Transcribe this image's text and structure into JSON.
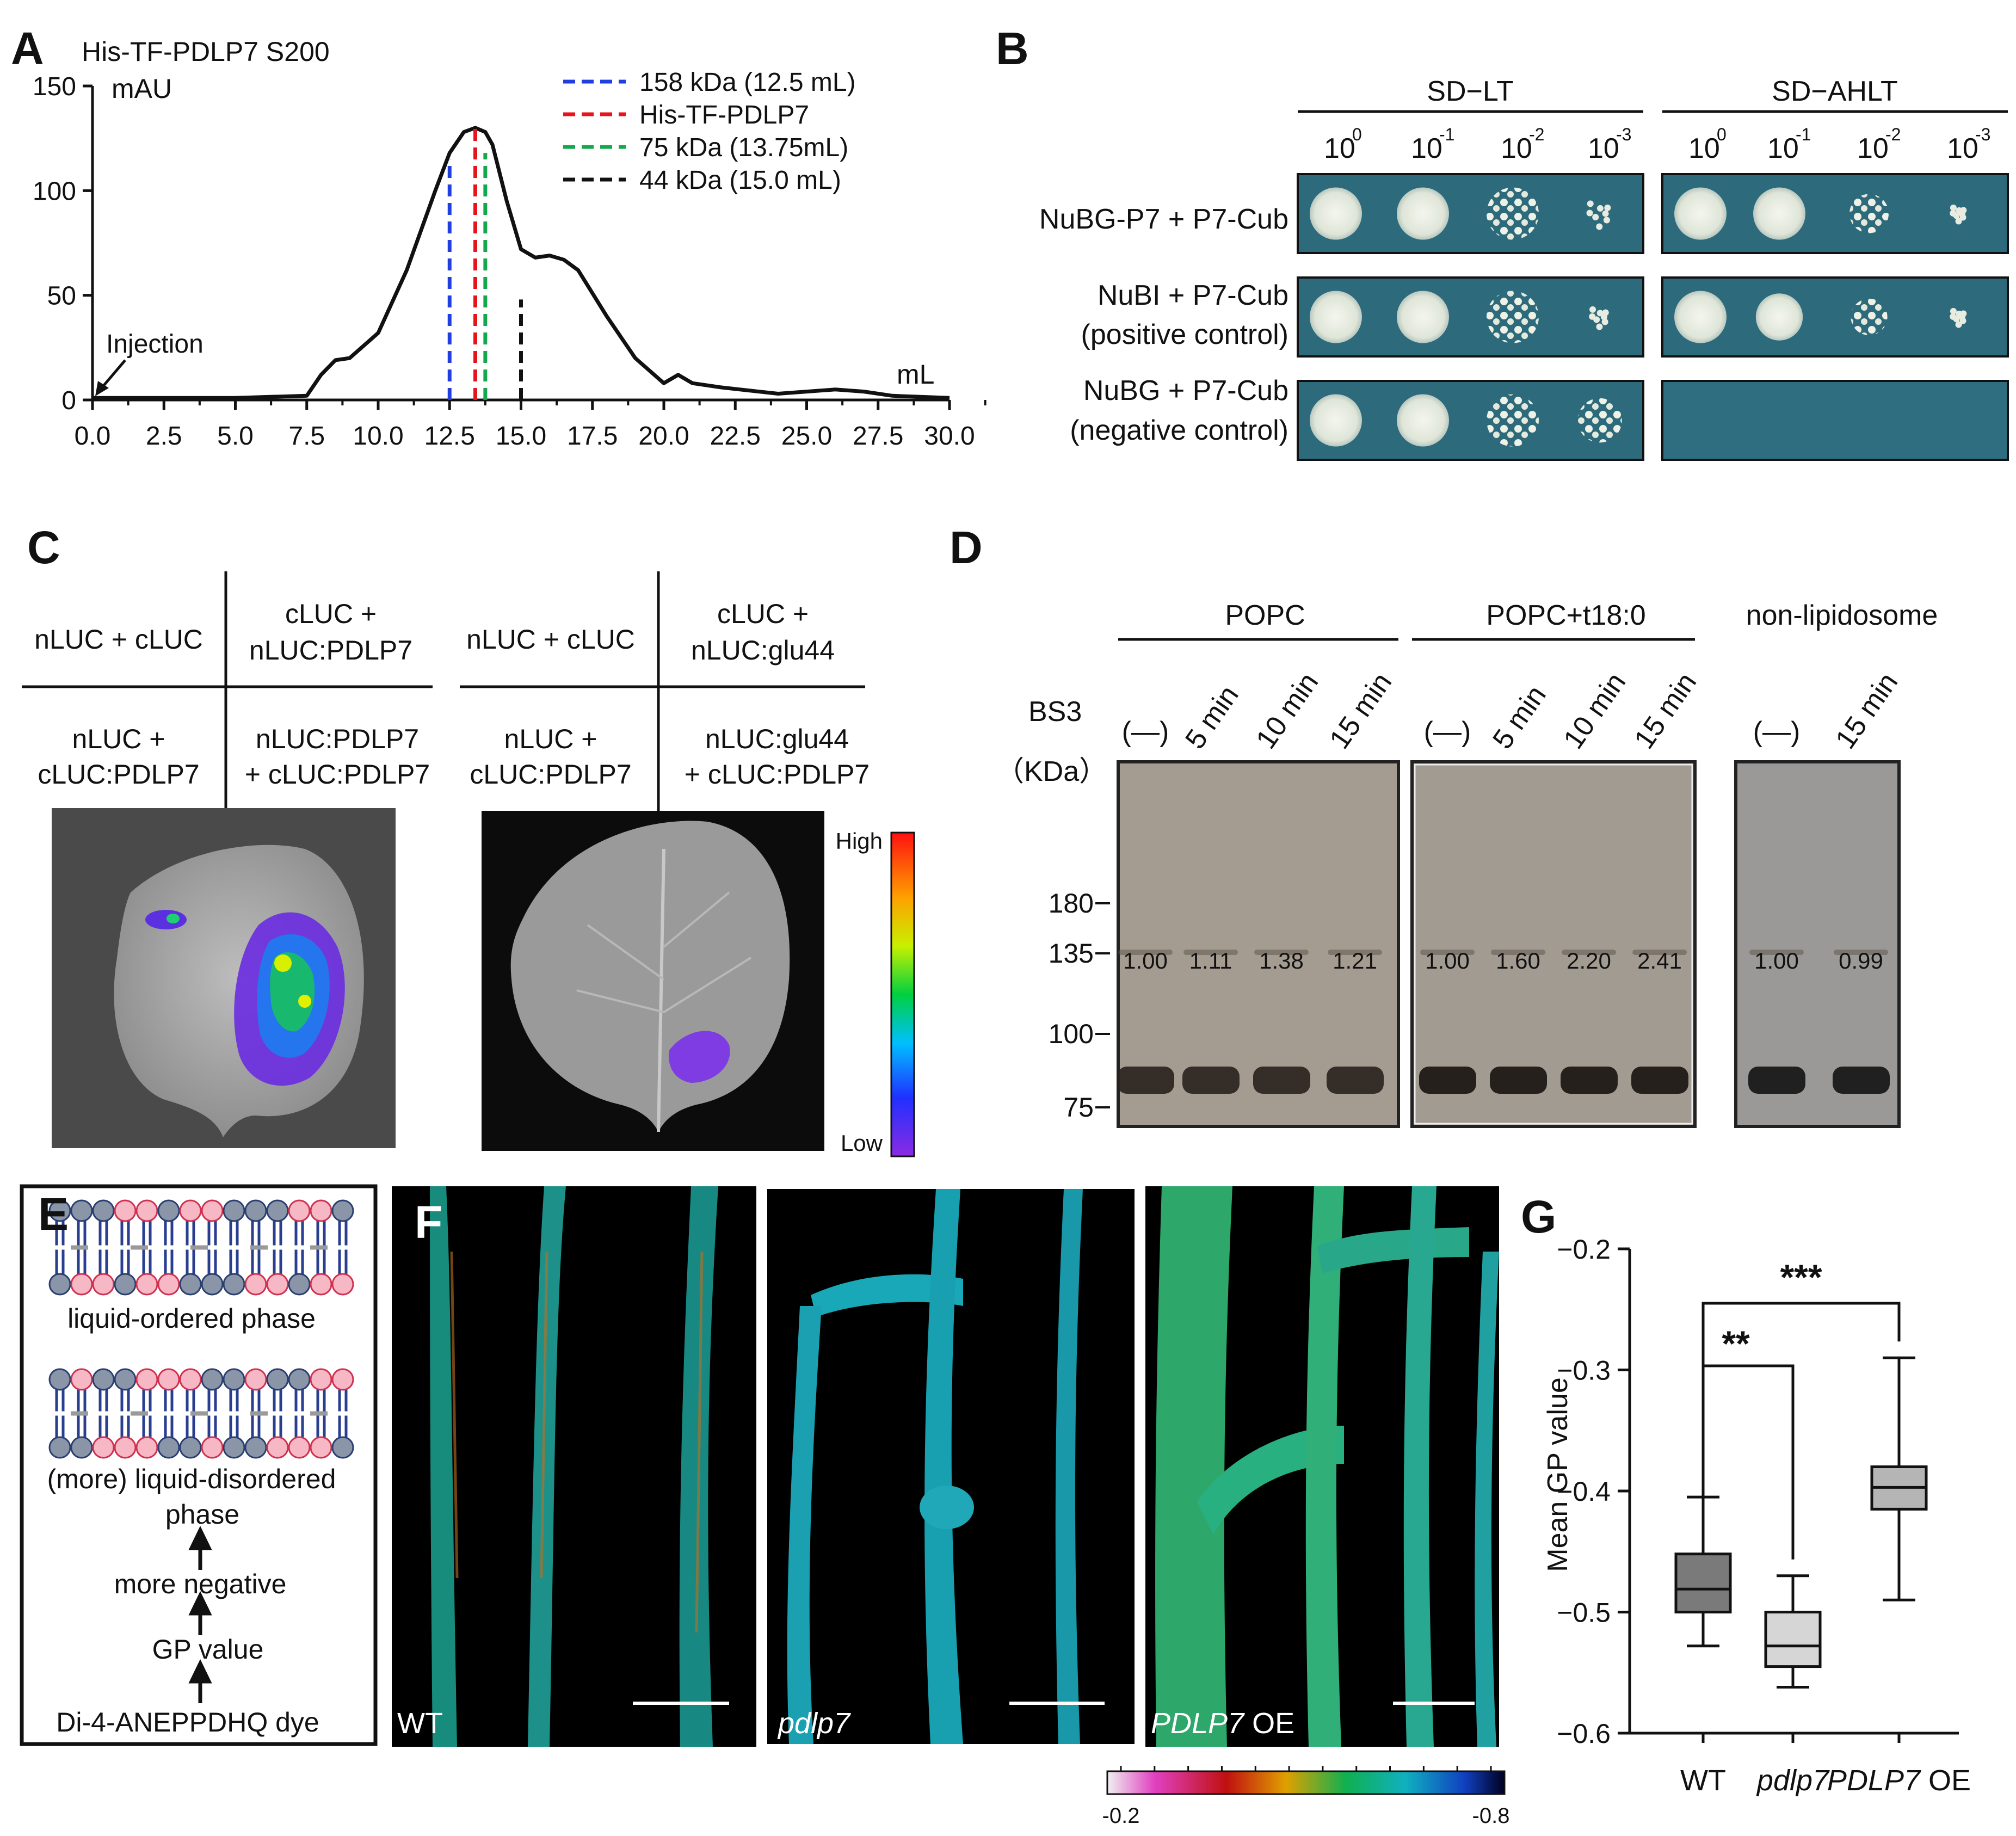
{
  "panels": {
    "A": {
      "label": "A",
      "title": "His-TF-PDLP7 S200",
      "y_unit": "mAU",
      "x_unit": "mL",
      "injection_label": "Injection",
      "legend": [
        {
          "text": "158 kDa (12.5 mL)",
          "color": "#1f3fe0"
        },
        {
          "text": "His-TF-PDLP7",
          "color": "#e8141c"
        },
        {
          "text": "75 kDa (13.75mL)",
          "color": "#13a84e"
        },
        {
          "text": "44 kDa (15.0 mL)",
          "color": "#111111"
        }
      ],
      "x_ticks": [
        "0.0",
        "2.5",
        "5.0",
        "7.5",
        "10.0",
        "12.5",
        "15.0",
        "17.5",
        "20.0",
        "22.5",
        "25.0",
        "27.5",
        "30.0"
      ],
      "y_ticks": [
        "0",
        "50",
        "100",
        "150"
      ]
    },
    "B": {
      "label": "B",
      "groups": [
        "SD−LT",
        "SD−AHLT"
      ],
      "dilutions": [
        "10",
        "10",
        "10",
        "10"
      ],
      "dilution_exps": [
        "0",
        "-1",
        "-2",
        "-3"
      ],
      "rows": [
        {
          "line1": "NuBG-P7 + P7-Cub",
          "line2": ""
        },
        {
          "line1": "NuBI + P7-Cub",
          "line2": "(positive control)"
        },
        {
          "line1": "NuBG + P7-Cub",
          "line2": "(negative control)"
        }
      ]
    },
    "C": {
      "label": "C",
      "left_grid": {
        "tl": "nLUC + cLUC",
        "tr1": "cLUC +",
        "tr2": "nLUC:PDLP7",
        "bl1": "nLUC +",
        "bl2": "cLUC:PDLP7",
        "br1": "nLUC:PDLP7",
        "br2": "+ cLUC:PDLP7"
      },
      "right_grid": {
        "tl": "nLUC + cLUC",
        "tr1": "cLUC +",
        "tr2": "nLUC:glu44",
        "bl1": "nLUC +",
        "bl2": "cLUC:PDLP7",
        "br1": "nLUC:glu44",
        "br2": "+ cLUC:PDLP7"
      },
      "scale_high": "High",
      "scale_low": "Low"
    },
    "D": {
      "label": "D",
      "groups": [
        "POPC",
        "POPC+t18:0",
        "non-lipidosome"
      ],
      "bs3_label": "BS3",
      "kda_label": "（KDa）",
      "lanes_g1": [
        "(—)",
        "5 min",
        "10 min",
        "15 min"
      ],
      "lanes_g2": [
        "(—)",
        "5 min",
        "10 min",
        "15 min"
      ],
      "lanes_g3": [
        "(—)",
        "15 min"
      ],
      "markers": [
        "180",
        "135",
        "100",
        "75"
      ],
      "ratios_g1": [
        "1.00",
        "1.11",
        "1.38",
        "1.21"
      ],
      "ratios_g2": [
        "1.00",
        "1.60",
        "2.20",
        "2.41"
      ],
      "ratios_g3": [
        "1.00",
        "0.99"
      ]
    },
    "E": {
      "label": "E",
      "ordered": "liquid-ordered phase",
      "disordered1": "(more) liquid-disordered",
      "disordered2": "phase",
      "step1": "more negative",
      "step2": "GP value",
      "step3": "Di-4-ANEPPDHQ dye"
    },
    "F": {
      "label": "F",
      "images": [
        "WT",
        "pdlp7",
        "PDLP7"
      ],
      "oe_suffix": " OE",
      "scale_min": "-0.2",
      "scale_max": "-0.8"
    },
    "G": {
      "label": "G",
      "sig_wt_pdlp7": "**",
      "sig_wt_oe": "***"
    }
  },
  "chart_data": [
    {
      "type": "line",
      "title": "His-TF-PDLP7 S200",
      "xlabel": "mL",
      "ylabel": "mAU",
      "xlim": [
        0,
        30
      ],
      "ylim": [
        0,
        150
      ],
      "series": [
        {
          "x": [
            0,
            5,
            7.5,
            8,
            8.5,
            9,
            10,
            11,
            12,
            12.5,
            13,
            13.4,
            13.75,
            14,
            14.5,
            15,
            15.5,
            16,
            16.5,
            17,
            18,
            19,
            20,
            20.5,
            21,
            22,
            24,
            25,
            26,
            27,
            28,
            30
          ],
          "values": [
            1,
            1,
            2,
            12,
            19,
            20,
            32,
            62,
            100,
            118,
            128,
            130,
            128,
            122,
            95,
            72,
            68,
            69,
            67,
            62,
            40,
            20,
            8,
            12,
            8,
            6,
            3,
            4,
            5,
            4,
            2,
            1
          ]
        }
      ],
      "markers": [
        {
          "name": "158 kDa (12.5 mL)",
          "x": 12.5
        },
        {
          "name": "His-TF-PDLP7",
          "x": 13.4
        },
        {
          "name": "75 kDa (13.75mL)",
          "x": 13.75
        },
        {
          "name": "44 kDa (15.0 mL)",
          "x": 15.0
        }
      ]
    },
    {
      "type": "box",
      "xlabel": "",
      "ylabel": "Mean GP value",
      "ylim": [
        -0.6,
        -0.2
      ],
      "categories": [
        "WT",
        "pdlp7",
        "PDLP7 OE"
      ],
      "boxes": [
        {
          "min": -0.528,
          "q1": -0.5,
          "median": -0.481,
          "q3": -0.452,
          "max": -0.405,
          "color": "#7a7a7a"
        },
        {
          "min": -0.562,
          "q1": -0.545,
          "median": -0.528,
          "q3": -0.5,
          "max": -0.47,
          "color": "#d6d6d6"
        },
        {
          "min": -0.49,
          "q1": -0.415,
          "median": -0.397,
          "q3": -0.38,
          "max": -0.29,
          "color": "#b5b5b5"
        }
      ],
      "y_ticks": [
        -0.2,
        -0.3,
        -0.4,
        -0.5,
        -0.6
      ],
      "comparisons": [
        {
          "from": "WT",
          "to": "pdlp7",
          "label": "**"
        },
        {
          "from": "WT",
          "to": "PDLP7 OE",
          "label": "***"
        }
      ]
    }
  ]
}
